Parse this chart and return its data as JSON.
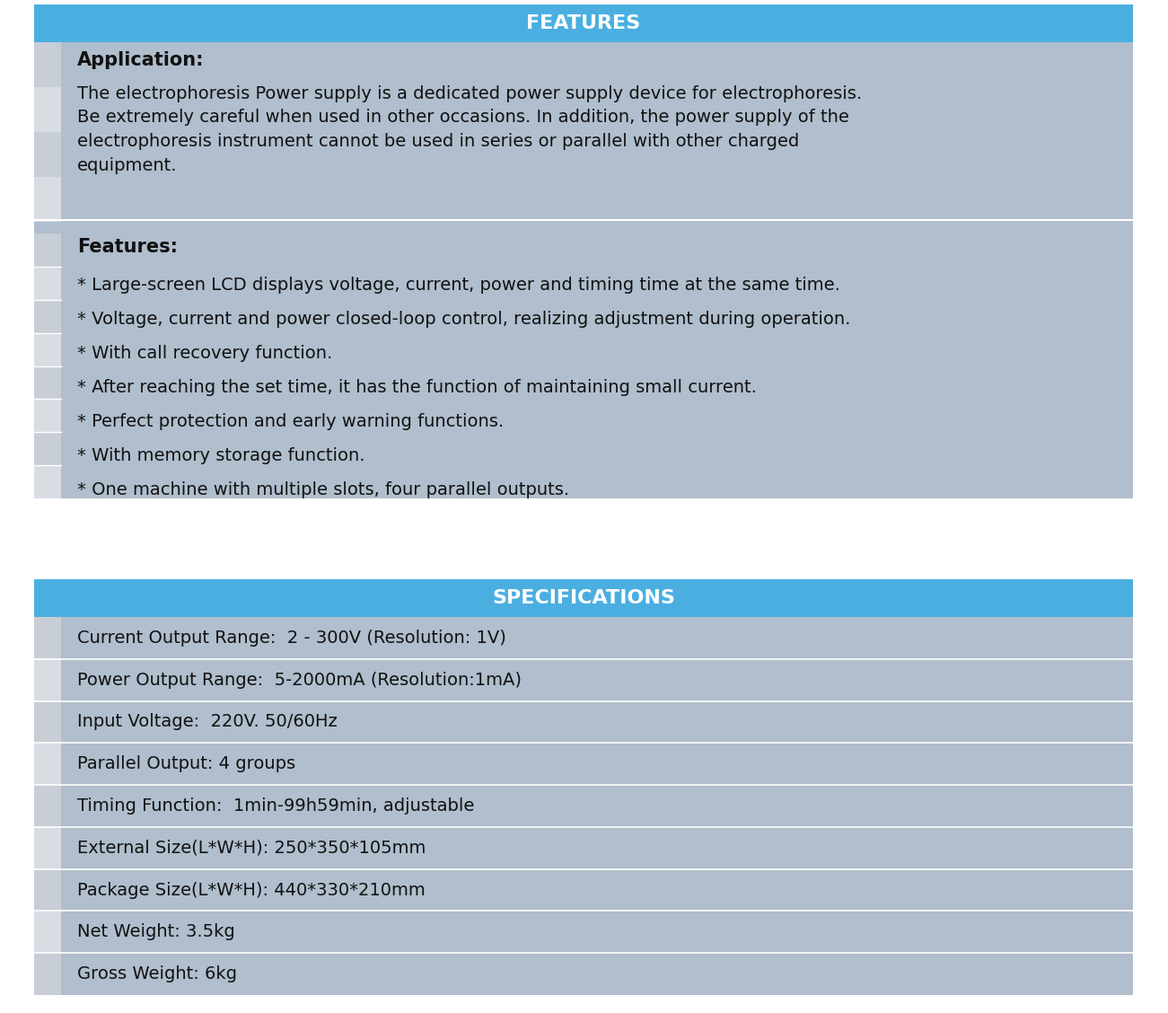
{
  "title_features": "FEATURES",
  "title_specs": "SPECIFICATIONS",
  "header_bg": "#4AAFE0",
  "header_text_color": "#FFFFFF",
  "features_bg": "#B0BECD",
  "specs_bg": "#B0BECD",
  "outer_bg": "#FFFFFF",
  "strip_dark": "#C8CDD6",
  "strip_light": "#D8DCE3",
  "application_title": "Application:",
  "application_text": "The electrophoresis Power supply is a dedicated power supply device for electrophoresis.\nBe extremely careful when used in other occasions. In addition, the power supply of the\nelectrophoresis instrument cannot be used in series or parallel with other charged\nequipment.",
  "features_title": "Features:",
  "features_bullets": [
    "* Large-screen LCD displays voltage, current, power and timing time at the same time.",
    "* Voltage, current and power closed-loop control, realizing adjustment during operation.",
    "* With call recovery function.",
    "* After reaching the set time, it has the function of maintaining small current.",
    "* Perfect protection and early warning functions.",
    "* With memory storage function.",
    "* One machine with multiple slots, four parallel outputs."
  ],
  "specs_rows": [
    "Current Output Range:  2 - 300V (Resolution: 1V)",
    "Power Output Range:  5-2000mA (Resolution:1mA)",
    "Input Voltage:  220V. 50/60Hz",
    "Parallel Output: 4 groups",
    "Timing Function:  1min-99h59min, adjustable",
    "External Size(L*W*H): 250*350*105mm",
    "Package Size(L*W*H): 440*330*210mm",
    "Net Weight: 3.5kg",
    "Gross Weight: 6kg"
  ],
  "text_color": "#111111",
  "font_size_header": 15,
  "font_size_body": 14,
  "figsize": [
    13.01,
    11.28
  ],
  "dpi": 100
}
